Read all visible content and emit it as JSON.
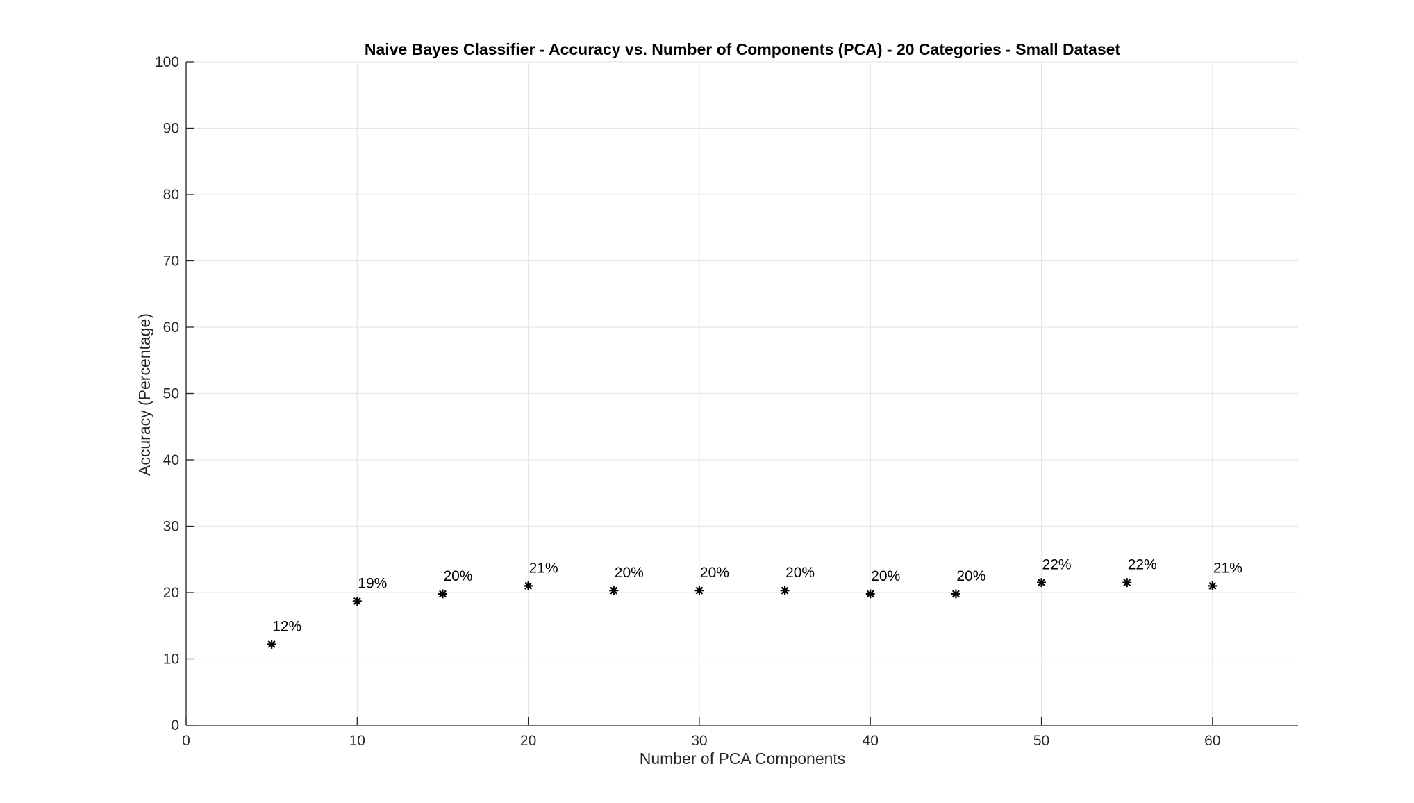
{
  "chart_data": {
    "type": "scatter",
    "title": "Naive Bayes Classifier - Accuracy vs. Number of Components (PCA) - 20 Categories - Small Dataset",
    "xlabel": "Number of PCA Components",
    "ylabel": "Accuracy (Percentage)",
    "xlim": [
      0,
      65
    ],
    "ylim": [
      0,
      100
    ],
    "xticks": [
      0,
      10,
      20,
      30,
      40,
      50,
      60
    ],
    "yticks": [
      0,
      10,
      20,
      30,
      40,
      50,
      60,
      70,
      80,
      90,
      100
    ],
    "grid": true,
    "marker": "asterisk",
    "marker_color": "#000000",
    "series": [
      {
        "x": [
          5,
          10,
          15,
          20,
          25,
          30,
          35,
          40,
          45,
          50,
          55,
          60
        ],
        "y": [
          12.2,
          18.7,
          19.8,
          21.0,
          20.3,
          20.3,
          20.3,
          19.8,
          19.8,
          21.5,
          21.5,
          21.0
        ],
        "labels": [
          "12%",
          "19%",
          "20%",
          "21%",
          "20%",
          "20%",
          "20%",
          "20%",
          "20%",
          "22%",
          "22%",
          "21%"
        ]
      }
    ]
  }
}
